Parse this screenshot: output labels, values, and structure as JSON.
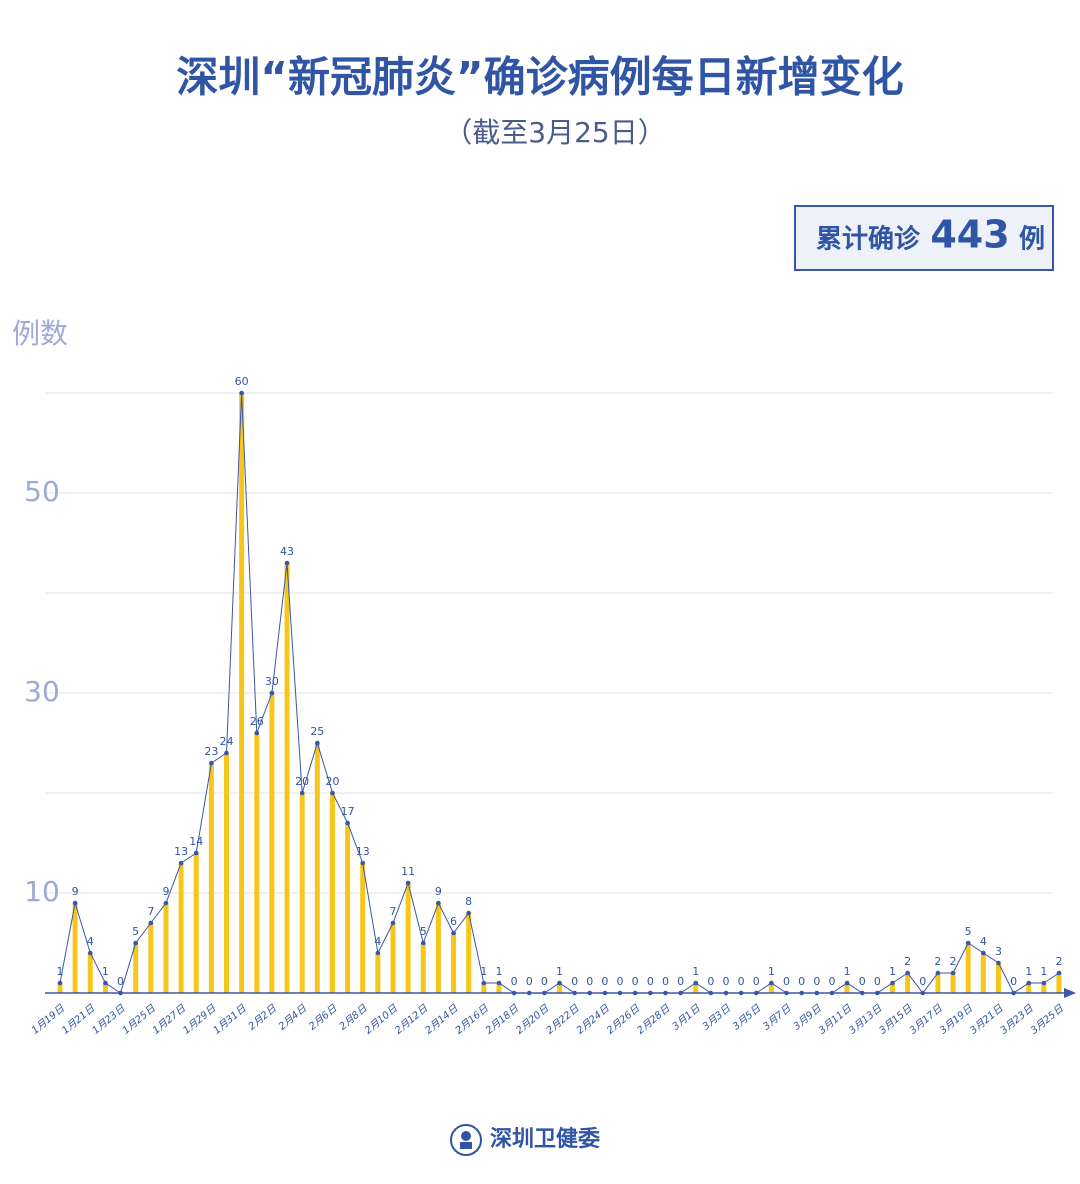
{
  "chart_data": {
    "type": "bar",
    "title": "深圳“新冠肺炎”确诊病例每日新增变化",
    "subtitle": "（截至3月25日）",
    "total_box": {
      "label": "累计确诊",
      "value": 443,
      "unit": "例"
    },
    "y_label": "例数",
    "footer": "深圳卫健委",
    "categories": [
      "1月19日",
      null,
      "1月21日",
      null,
      "1月23日",
      null,
      "1月25日",
      null,
      "1月27日",
      null,
      "1月29日",
      null,
      "1月31日",
      null,
      "2月2日",
      null,
      "2月4日",
      null,
      "2月6日",
      null,
      "2月8日",
      null,
      "2月10日",
      null,
      "2月12日",
      null,
      "2月14日",
      null,
      "2月16日",
      null,
      "2月18日",
      null,
      "2月20日",
      null,
      "2月22日",
      null,
      "2月24日",
      null,
      "2月26日",
      null,
      "2月28日",
      null,
      "3月1日",
      null,
      "3月3日",
      null,
      "3月5日",
      null,
      "3月7日",
      null,
      "3月9日",
      null,
      "3月11日",
      null,
      "3月13日",
      null,
      "3月15日",
      null,
      "3月17日",
      null,
      "3月19日",
      null,
      "3月21日",
      null,
      "3月23日",
      null,
      "3月25日"
    ],
    "values": [
      1,
      9,
      4,
      1,
      0,
      5,
      7,
      9,
      13,
      14,
      23,
      24,
      60,
      26,
      30,
      43,
      20,
      25,
      20,
      17,
      13,
      4,
      7,
      11,
      5,
      9,
      6,
      8,
      1,
      1,
      0,
      0,
      0,
      1,
      0,
      0,
      0,
      0,
      0,
      0,
      0,
      0,
      1,
      0,
      0,
      0,
      0,
      1,
      0,
      0,
      0,
      0,
      1,
      0,
      0,
      1,
      2,
      0,
      2,
      2,
      5,
      4,
      3,
      0,
      1,
      1,
      2
    ],
    "color": "#f7c61a",
    "line_color": "#3a56a6",
    "ylim": [
      0,
      60
    ],
    "yticks": [
      10,
      30,
      50
    ],
    "grid_lines": [
      10,
      20,
      30,
      40,
      50,
      60
    ],
    "grid": true
  }
}
